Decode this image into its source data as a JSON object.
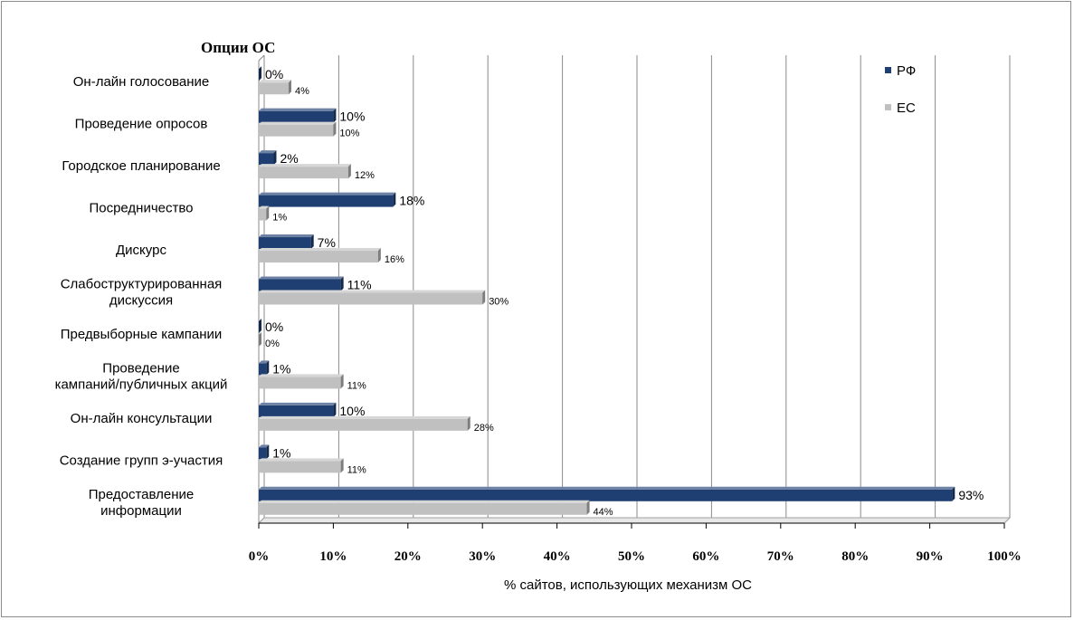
{
  "chart_data": {
    "type": "bar",
    "orientation": "horizontal",
    "title": "Опции ОС",
    "xlabel": "% сайтов, использующих механизм ОС",
    "ylabel": "",
    "xlim": [
      0,
      100
    ],
    "x_ticks": [
      "0%",
      "10%",
      "20%",
      "30%",
      "40%",
      "50%",
      "60%",
      "70%",
      "80%",
      "90%",
      "100%"
    ],
    "grid": true,
    "legend_position": "top-right",
    "categories": [
      "Он-лайн голосование",
      "Проведение опросов",
      "Городское планирование",
      "Посредничество",
      "Дискурс",
      "Слабоструктурированная дискуссия",
      "Предвыборные кампании",
      "Проведение кампаний/публичных акций",
      "Он-лайн консультации",
      "Создание групп э-участия",
      "Предоставление информации"
    ],
    "category_lines": [
      [
        "Он-лайн голосование"
      ],
      [
        "Проведение опросов"
      ],
      [
        "Городское планирование"
      ],
      [
        "Посредничество"
      ],
      [
        "Дискурс"
      ],
      [
        "Слабоструктурированная",
        "дискуссия"
      ],
      [
        "Предвыборные кампании"
      ],
      [
        "Проведение",
        "кампаний/публичных акций"
      ],
      [
        "Он-лайн консультации"
      ],
      [
        "Создание групп э-участия"
      ],
      [
        "Предоставление",
        "информации"
      ]
    ],
    "series": [
      {
        "name": "РФ",
        "color": "#1f3f73",
        "values": [
          0,
          10,
          2,
          18,
          7,
          11,
          0,
          1,
          10,
          1,
          93
        ],
        "labels": [
          "0%",
          "10%",
          "2%",
          "18%",
          "7%",
          "11%",
          "0%",
          "1%",
          "10%",
          "1%",
          "93%"
        ]
      },
      {
        "name": "ЕС",
        "color": "#c0c0c0",
        "values": [
          4,
          10,
          12,
          1,
          16,
          30,
          0,
          11,
          28,
          11,
          44
        ],
        "labels": [
          "4%",
          "10%",
          "12%",
          "1%",
          "16%",
          "30%",
          "0%",
          "11%",
          "28%",
          "11%",
          "44%"
        ]
      }
    ]
  }
}
